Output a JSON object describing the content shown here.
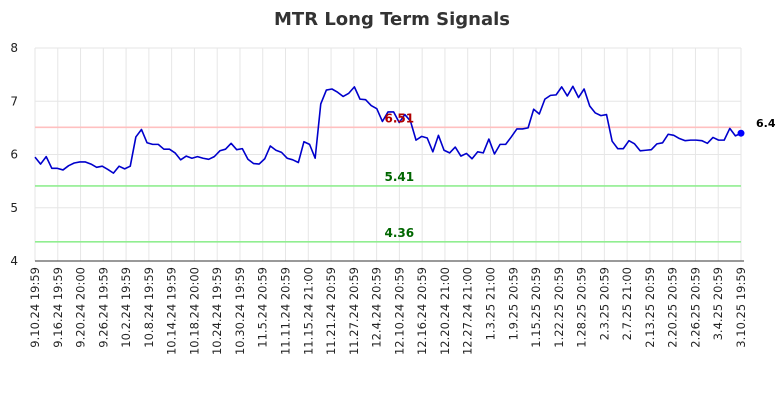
{
  "chart_data": {
    "type": "line",
    "title": "MTR Long Term Signals",
    "xlabel": "",
    "ylabel": "",
    "ylim": [
      4,
      8
    ],
    "yticks": [
      "4",
      "5",
      "6",
      "7",
      "8"
    ],
    "grid": true,
    "x_tick_labels": [
      "9.10.24 19:59",
      "9.16.24 19:59",
      "9.20.24 20:00",
      "9.26.24 19:59",
      "10.2.24 19:59",
      "10.8.24 19:59",
      "10.14.24 19:59",
      "10.18.24 20:00",
      "10.24.24 19:59",
      "10.30.24 19:59",
      "11.5.24 20:59",
      "11.11.24 20:59",
      "11.15.24 21:00",
      "11.21.24 20:59",
      "11.27.24 20:59",
      "12.4.24 20:59",
      "12.10.24 20:59",
      "12.16.24 20:59",
      "12.20.24 21:00",
      "12.27.24 21:00",
      "1.3.25 21:00",
      "1.9.25 20:59",
      "1.15.25 20:59",
      "1.22.25 20:59",
      "1.28.25 20:59",
      "2.3.25 20:59",
      "2.7.25 21:00",
      "2.13.25 20:59",
      "2.20.25 20:59",
      "2.26.25 20:59",
      "3.4.25 20:59",
      "3.10.25 19:59"
    ],
    "series": [
      {
        "color": "#0000cc",
        "values": [
          5.95,
          5.82,
          5.96,
          5.74,
          5.74,
          5.71,
          5.79,
          5.84,
          5.86,
          5.86,
          5.82,
          5.76,
          5.78,
          5.72,
          5.65,
          5.78,
          5.73,
          5.78,
          6.33,
          6.47,
          6.22,
          6.19,
          6.19,
          6.1,
          6.1,
          6.03,
          5.9,
          5.97,
          5.93,
          5.96,
          5.93,
          5.91,
          5.96,
          6.07,
          6.1,
          6.21,
          6.09,
          6.11,
          5.91,
          5.83,
          5.82,
          5.92,
          6.16,
          6.08,
          6.04,
          5.93,
          5.9,
          5.85,
          6.24,
          6.19,
          5.93,
          6.95,
          7.21,
          7.23,
          7.17,
          7.09,
          7.15,
          7.27,
          7.04,
          7.03,
          6.92,
          6.86,
          6.62,
          6.8,
          6.8,
          6.6,
          6.75,
          6.63,
          6.27,
          6.34,
          6.31,
          6.05,
          6.36,
          6.08,
          6.03,
          6.14,
          5.97,
          6.02,
          5.92,
          6.05,
          6.03,
          6.29,
          6.01,
          6.19,
          6.19,
          6.33,
          6.48,
          6.48,
          6.5,
          6.85,
          6.76,
          7.04,
          7.11,
          7.12,
          7.27,
          7.1,
          7.28,
          7.07,
          7.23,
          6.91,
          6.78,
          6.73,
          6.75,
          6.25,
          6.11,
          6.11,
          6.26,
          6.2,
          6.07,
          6.08,
          6.09,
          6.2,
          6.22,
          6.38,
          6.36,
          6.3,
          6.26,
          6.27,
          6.27,
          6.26,
          6.21,
          6.32,
          6.27,
          6.27,
          6.49,
          6.35,
          6.4
        ]
      }
    ],
    "last_point": {
      "value": 6.4,
      "label": "6.4",
      "color": "#0000ff"
    },
    "reference_lines": [
      {
        "value": 6.51,
        "label": "6.51",
        "line_color": "#ffc0c0",
        "text_color": "#b00000"
      },
      {
        "value": 5.41,
        "label": "5.41",
        "line_color": "#90ee90",
        "text_color": "#006600"
      },
      {
        "value": 4.36,
        "label": "4.36",
        "line_color": "#90ee90",
        "text_color": "#006600"
      }
    ]
  }
}
